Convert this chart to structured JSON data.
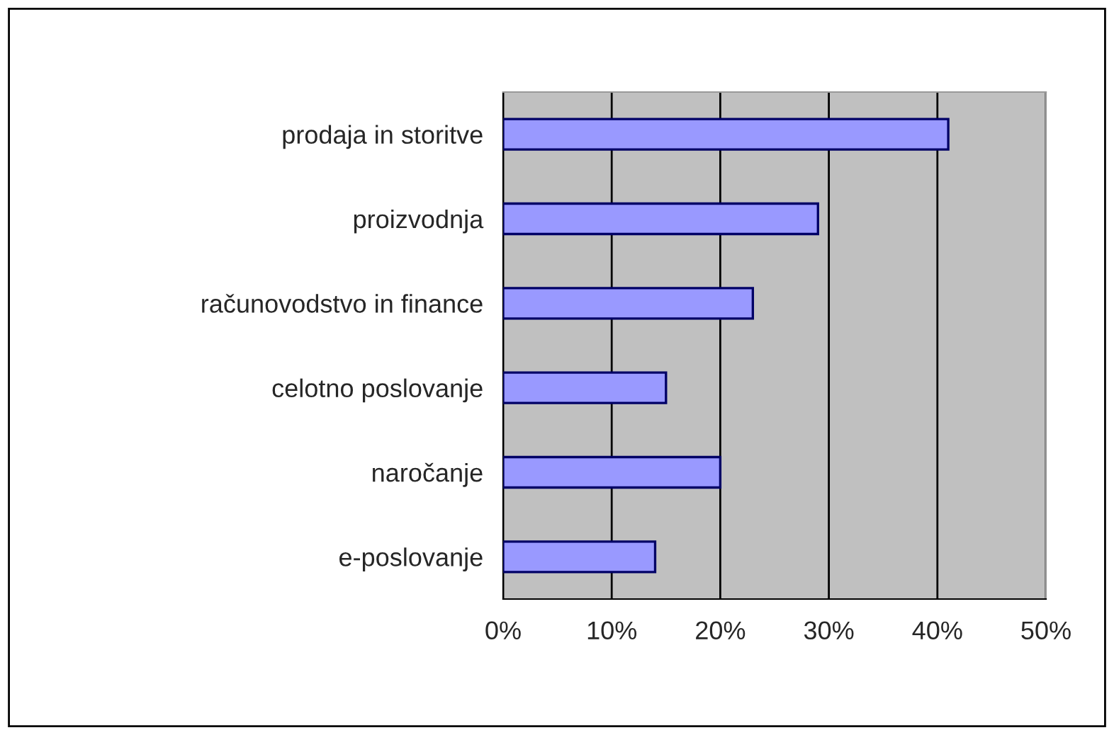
{
  "chart_data": {
    "type": "bar",
    "orientation": "horizontal",
    "categories": [
      "prodaja in storitve",
      "proizvodnja",
      "računovodstvo in finance",
      "celotno poslovanje",
      "naročanje",
      "e-poslovanje"
    ],
    "values": [
      41,
      29,
      23,
      15,
      20,
      14
    ],
    "color": "#9999ff",
    "xlim": [
      0,
      50
    ],
    "xticks": [
      {
        "value": 0,
        "label": "0%"
      },
      {
        "value": 10,
        "label": "10%"
      },
      {
        "value": 20,
        "label": "20%"
      },
      {
        "value": 30,
        "label": "30%"
      },
      {
        "value": 40,
        "label": "40%"
      },
      {
        "value": 50,
        "label": "50%"
      }
    ],
    "grid": "x",
    "legend": false
  }
}
